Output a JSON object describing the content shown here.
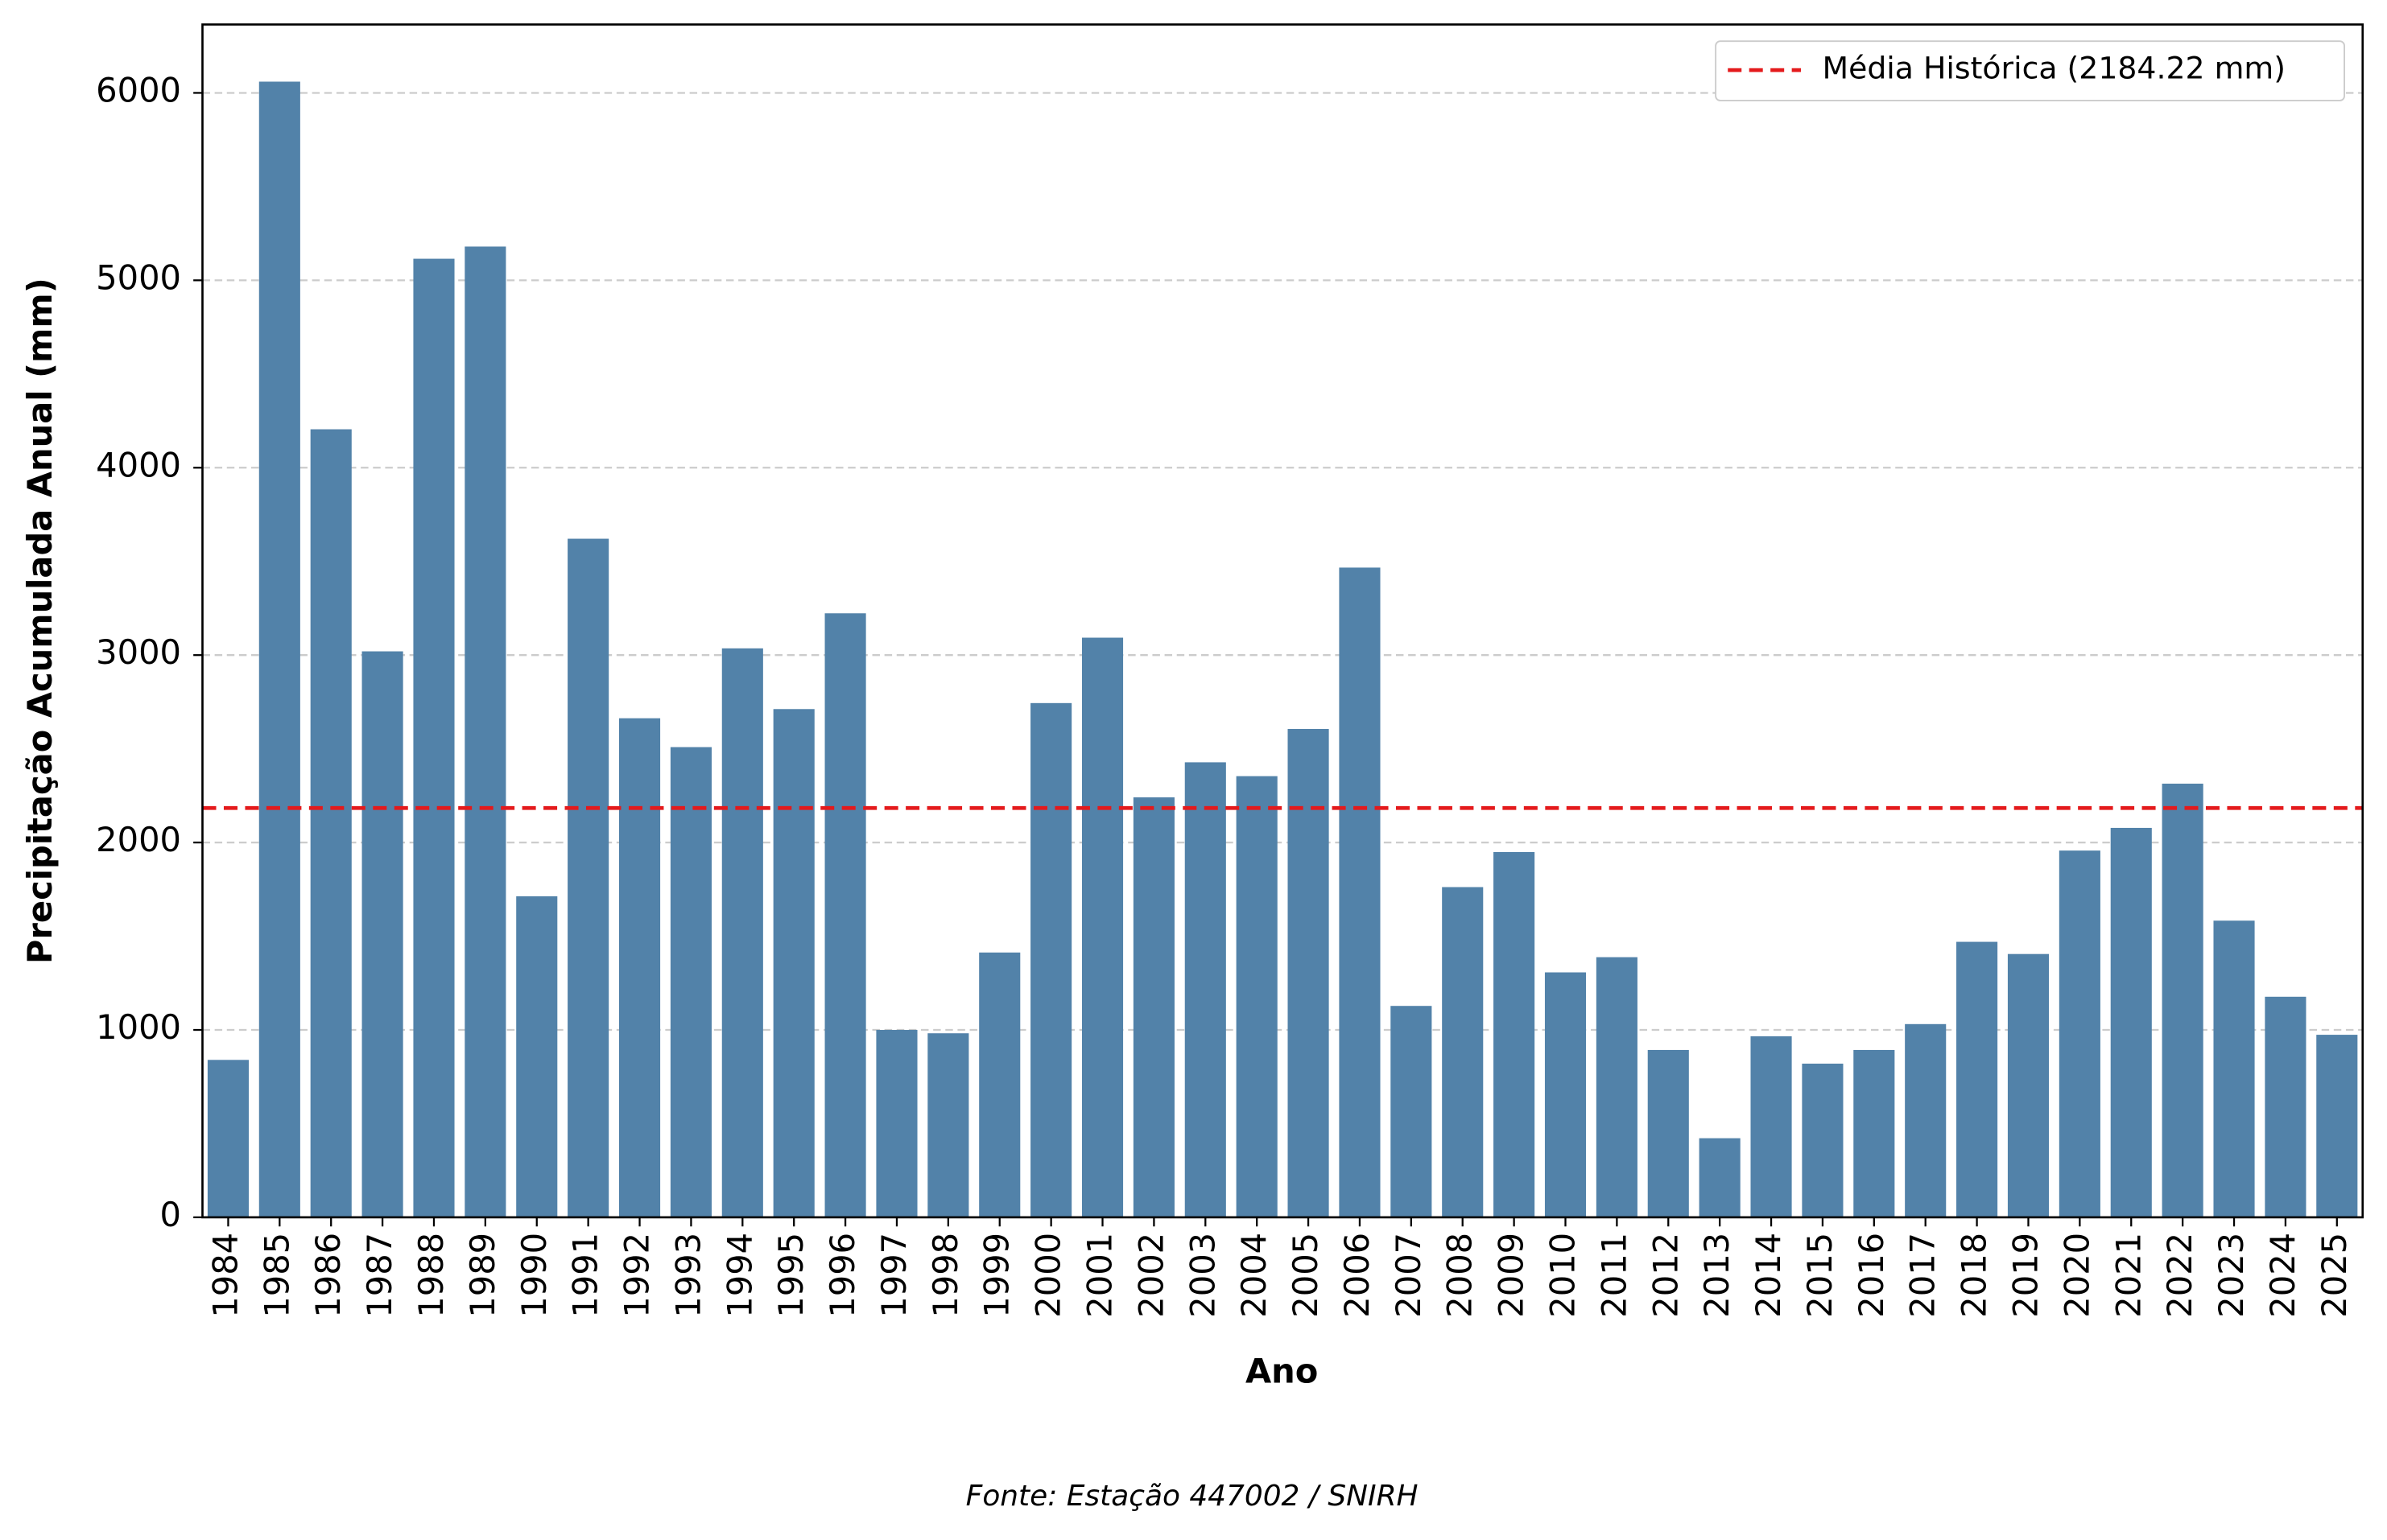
{
  "chart_data": {
    "type": "bar",
    "x_label": "Ano",
    "y_label": "Precipitação Acumulada Anual (mm)",
    "source": "Fonte: Estação 447002 / SNIRH",
    "categories": [
      "1984",
      "1985",
      "1986",
      "1987",
      "1988",
      "1989",
      "1990",
      "1991",
      "1992",
      "1993",
      "1994",
      "1995",
      "1996",
      "1997",
      "1998",
      "1999",
      "2000",
      "2001",
      "2002",
      "2003",
      "2004",
      "2005",
      "2006",
      "2007",
      "2008",
      "2009",
      "2010",
      "2011",
      "2012",
      "2013",
      "2014",
      "2015",
      "2016",
      "2017",
      "2018",
      "2019",
      "2020",
      "2021",
      "2022",
      "2023",
      "2024",
      "2025"
    ],
    "values": [
      840,
      6060,
      4205,
      3020,
      5115,
      5180,
      1713,
      3621,
      2663,
      2509,
      3036,
      2712,
      3223,
      1000,
      982,
      1413,
      2744,
      3093,
      2241,
      2428,
      2354,
      2606,
      3467,
      1128,
      1762,
      1949,
      1307,
      1388,
      893,
      422,
      966,
      820,
      893,
      1031,
      1470,
      1405,
      1957,
      2078,
      2314,
      1583,
      1177,
      974
    ],
    "color": "#5282a9",
    "ylim": [
      0,
      6365
    ],
    "yticks": [
      0,
      1000,
      2000,
      3000,
      4000,
      5000,
      6000
    ],
    "grid": true,
    "mean_line": {
      "value": 2184.22,
      "label": "Média Histórica (2184.22 mm)",
      "color": "#e41a1c"
    },
    "legend_position": "upper right"
  }
}
